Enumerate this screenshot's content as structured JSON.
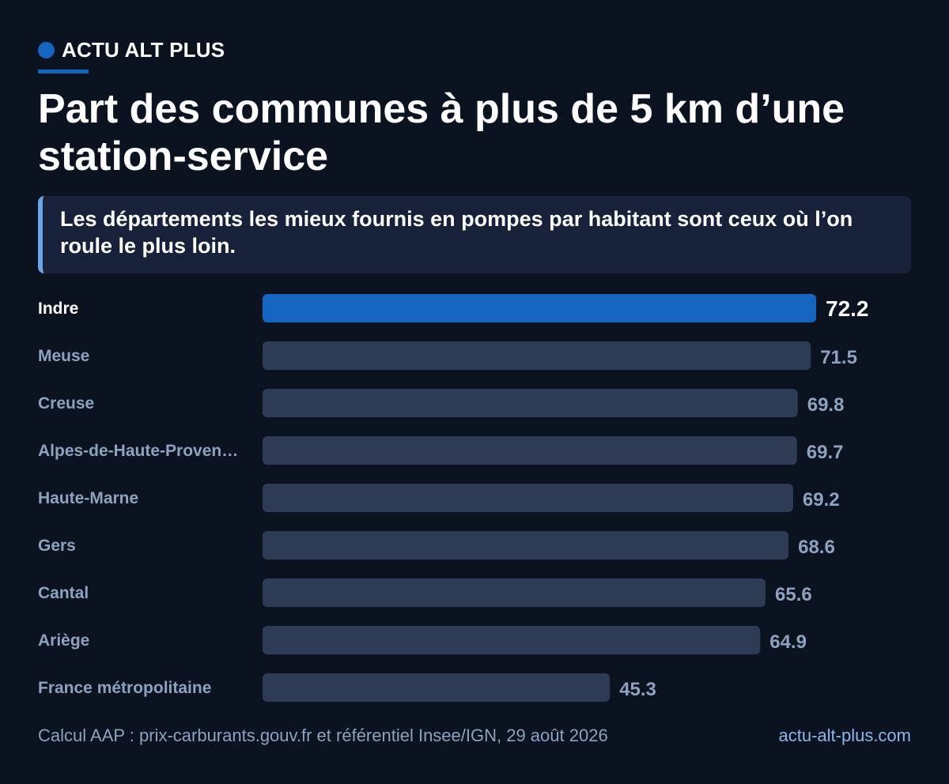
{
  "brand": {
    "name": "ACTU ALT PLUS"
  },
  "title": "Part des communes à plus de 5 km d’une station-service",
  "subtitle": "Les départements les mieux fournis en pompes par habitant sont ceux où l’on roule le plus loin.",
  "footer": {
    "source": "Calcul AAP : prix-carburants.gouv.fr et référentiel Insee/IGN, 29 août 2026",
    "site": "actu-alt-plus.com"
  },
  "colors": {
    "highlight": "#1565c0",
    "bar": "#2d3b55",
    "label_highlight": "#ffffff",
    "label": "#8da2bf"
  },
  "chart_data": {
    "type": "bar",
    "orientation": "horizontal",
    "categories": [
      "Indre",
      "Meuse",
      "Creuse",
      "Alpes-de-Haute-Proven…",
      "Haute-Marne",
      "Gers",
      "Cantal",
      "Ariège",
      "France métropolitaine"
    ],
    "values": [
      72.2,
      71.5,
      69.8,
      69.7,
      69.2,
      68.6,
      65.6,
      64.9,
      45.3
    ],
    "value_labels": [
      "72.2",
      "71.5",
      "69.8",
      "69.7",
      "69.2",
      "68.6",
      "65.6",
      "64.9",
      "45.3"
    ],
    "highlight_index": 0,
    "xlim": [
      0,
      72.2
    ],
    "grid": false,
    "legend": "none"
  }
}
